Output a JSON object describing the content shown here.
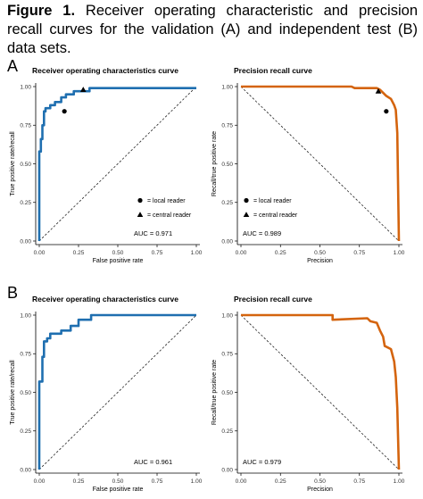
{
  "caption": {
    "label": "Figure 1.",
    "text": "Receiver operating characteristic and precision recall curves for the validation (A) and independent test (B) data sets."
  },
  "panel_letters": [
    "A",
    "B"
  ],
  "colors": {
    "roc": "#1f6fb0",
    "pr": "#d4640e"
  },
  "chart_data": [
    {
      "type": "line",
      "title": "Receiver operating characteristics curve",
      "xlabel": "False positive rate",
      "ylabel": "True positive rate/recall",
      "xlim": [
        0,
        1
      ],
      "ylim": [
        0,
        1
      ],
      "ticks": [
        "0.00",
        "0.25",
        "0.50",
        "0.75",
        "1.00"
      ],
      "series": [
        {
          "points": [
            [
              0,
              0
            ],
            [
              0,
              0.58
            ],
            [
              0.01,
              0.58
            ],
            [
              0.01,
              0.66
            ],
            [
              0.02,
              0.66
            ],
            [
              0.02,
              0.75
            ],
            [
              0.03,
              0.75
            ],
            [
              0.03,
              0.84
            ],
            [
              0.04,
              0.84
            ],
            [
              0.04,
              0.86
            ],
            [
              0.07,
              0.86
            ],
            [
              0.07,
              0.88
            ],
            [
              0.1,
              0.88
            ],
            [
              0.1,
              0.9
            ],
            [
              0.14,
              0.9
            ],
            [
              0.14,
              0.93
            ],
            [
              0.17,
              0.93
            ],
            [
              0.17,
              0.95
            ],
            [
              0.22,
              0.95
            ],
            [
              0.22,
              0.97
            ],
            [
              0.32,
              0.97
            ],
            [
              0.32,
              0.99
            ],
            [
              0.5,
              0.99
            ],
            [
              1,
              0.99
            ]
          ]
        }
      ],
      "diagonal": [
        [
          0,
          0
        ],
        [
          1,
          1
        ]
      ],
      "markers": [
        {
          "shape": "circle",
          "x": 0.16,
          "y": 0.84
        },
        {
          "shape": "triangle",
          "x": 0.28,
          "y": 0.98
        }
      ],
      "legend": [
        {
          "shape": "circle",
          "label": "= local reader"
        },
        {
          "shape": "triangle",
          "label": "= central reader"
        }
      ],
      "auc": "AUC = 0.971"
    },
    {
      "type": "line",
      "title": "Precision recall curve",
      "xlabel": "Precision",
      "ylabel": "Recall/true positive rate",
      "xlim": [
        0,
        1
      ],
      "ylim": [
        0,
        1
      ],
      "ticks": [
        "0.00",
        "0.25",
        "0.50",
        "0.75",
        "1.00"
      ],
      "series": [
        {
          "points": [
            [
              0,
              1
            ],
            [
              0.7,
              1
            ],
            [
              0.72,
              0.99
            ],
            [
              0.86,
              0.99
            ],
            [
              0.88,
              0.98
            ],
            [
              0.9,
              0.96
            ],
            [
              0.92,
              0.94
            ],
            [
              0.95,
              0.92
            ],
            [
              0.97,
              0.88
            ],
            [
              0.98,
              0.85
            ],
            [
              0.99,
              0.7
            ],
            [
              1,
              0
            ]
          ]
        }
      ],
      "diagonal": [
        [
          0,
          1
        ],
        [
          1,
          0
        ]
      ],
      "markers": [
        {
          "shape": "circle",
          "x": 0.92,
          "y": 0.84
        },
        {
          "shape": "triangle",
          "x": 0.87,
          "y": 0.97
        }
      ],
      "legend": [
        {
          "shape": "circle",
          "label": "= local reader"
        },
        {
          "shape": "triangle",
          "label": "= central reader"
        }
      ],
      "auc": "AUC = 0.989"
    },
    {
      "type": "line",
      "title": "Receiver operating characteristics curve",
      "xlabel": "False positive rate",
      "ylabel": "True positive rate/recall",
      "xlim": [
        0,
        1
      ],
      "ylim": [
        0,
        1
      ],
      "ticks": [
        "0.00",
        "0.25",
        "0.50",
        "0.75",
        "1.00"
      ],
      "series": [
        {
          "points": [
            [
              0,
              0
            ],
            [
              0,
              0.57
            ],
            [
              0.02,
              0.57
            ],
            [
              0.02,
              0.73
            ],
            [
              0.03,
              0.73
            ],
            [
              0.03,
              0.83
            ],
            [
              0.05,
              0.83
            ],
            [
              0.05,
              0.85
            ],
            [
              0.07,
              0.85
            ],
            [
              0.07,
              0.88
            ],
            [
              0.14,
              0.88
            ],
            [
              0.14,
              0.9
            ],
            [
              0.2,
              0.9
            ],
            [
              0.2,
              0.93
            ],
            [
              0.25,
              0.93
            ],
            [
              0.25,
              0.97
            ],
            [
              0.33,
              0.97
            ],
            [
              0.33,
              1
            ],
            [
              1,
              1
            ]
          ]
        }
      ],
      "diagonal": [
        [
          0,
          0
        ],
        [
          1,
          1
        ]
      ],
      "markers": [],
      "legend": [],
      "auc": "AUC = 0.961"
    },
    {
      "type": "line",
      "title": "Precision recall curve",
      "xlabel": "Precision",
      "ylabel": "Recall/true positive rate",
      "xlim": [
        0,
        1
      ],
      "ylim": [
        0,
        1
      ],
      "ticks": [
        "0.00",
        "0.25",
        "0.50",
        "0.75",
        "1.00"
      ],
      "series": [
        {
          "points": [
            [
              0,
              1
            ],
            [
              0.58,
              1
            ],
            [
              0.58,
              0.97
            ],
            [
              0.8,
              0.98
            ],
            [
              0.82,
              0.96
            ],
            [
              0.86,
              0.95
            ],
            [
              0.88,
              0.9
            ],
            [
              0.9,
              0.86
            ],
            [
              0.91,
              0.8
            ],
            [
              0.93,
              0.79
            ],
            [
              0.95,
              0.78
            ],
            [
              0.97,
              0.7
            ],
            [
              0.98,
              0.6
            ],
            [
              0.99,
              0.4
            ],
            [
              1,
              0
            ]
          ]
        }
      ],
      "diagonal": [
        [
          0,
          1
        ],
        [
          1,
          0
        ]
      ],
      "markers": [],
      "legend": [],
      "auc": "AUC = 0.979"
    }
  ]
}
